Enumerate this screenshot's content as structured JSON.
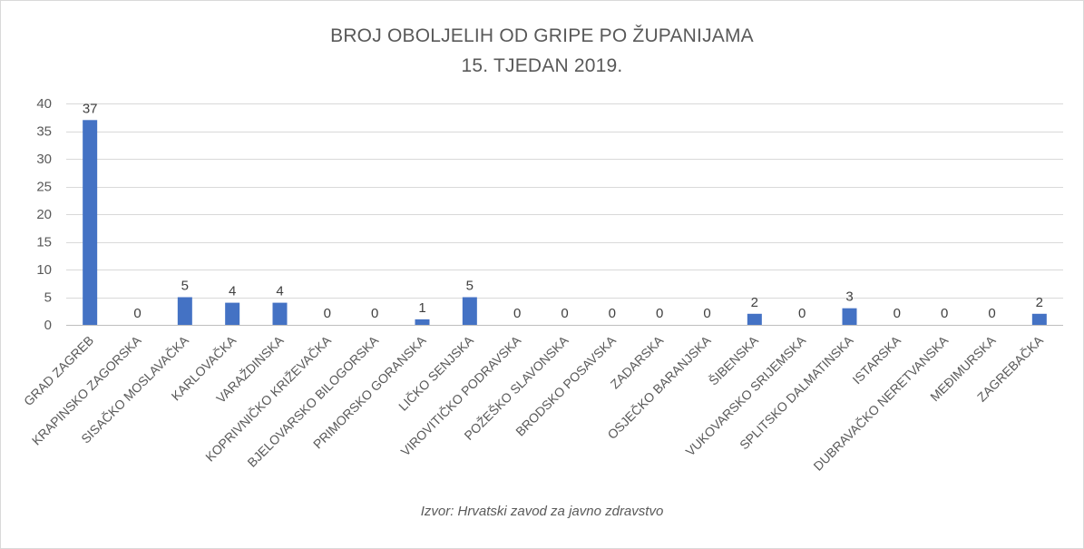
{
  "chart_data": {
    "type": "bar",
    "title": "BROJ OBOLJELIH OD GRIPE PO ŽUPANIJAMA",
    "subtitle": "15. TJEDAN 2019.",
    "xlabel": "",
    "ylabel": "",
    "ylim": [
      0,
      40
    ],
    "yticks": [
      0,
      5,
      10,
      15,
      20,
      25,
      30,
      35,
      40
    ],
    "grid": true,
    "legend": "none",
    "bar_color": "#4472c4",
    "categories": [
      "GRAD ZAGREB",
      "KRAPINSKO ZAGORSKA",
      "SISAČKO MOSLAVAČKA",
      "KARLOVAČKA",
      "VARAŽDINSKA",
      "KOPRIVNIČKO KRIŽEVAČKA",
      "BJELOVARSKO BILOGORSKA",
      "PRIMORSKO GORANSKA",
      "LIČKO SENJSKA",
      "VIROVITIČKO PODRAVSKA",
      "POŽEŠKO SLAVONSKA",
      "BRODSKO POSAVSKA",
      "ZADARSKA",
      "OSJEČKO BARANJSKA",
      "ŠIBENSKA",
      "VUKOVARSKO SRIJEMSKA",
      "SPLITSKO DALMATINSKA",
      "ISTARSKA",
      "DUBRAVAČKO NERETVANSKA",
      "MEĐIMURSKA",
      "ZAGREBAČKA"
    ],
    "values": [
      37,
      0,
      5,
      4,
      4,
      0,
      0,
      1,
      5,
      0,
      0,
      0,
      0,
      0,
      2,
      0,
      3,
      0,
      0,
      0,
      2
    ],
    "source": "Izvor: Hrvatski zavod za javno zdravstvo"
  }
}
